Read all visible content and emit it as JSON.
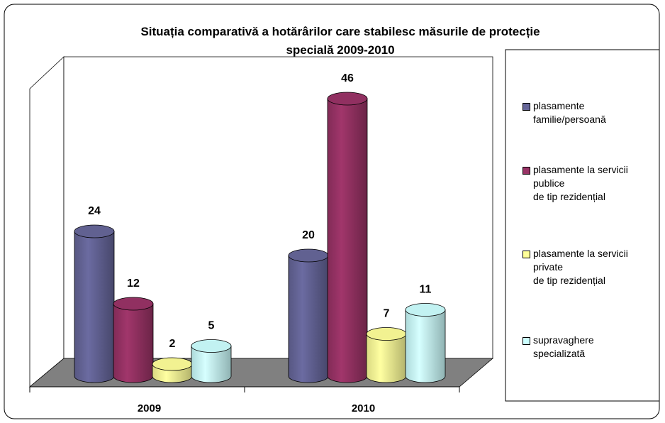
{
  "chart_data": {
    "type": "bar3d",
    "title": "Situația comparativă a hotărârilor care stabilesc măsurile de protecție\nspecială 2009-2010",
    "categories": [
      "2009",
      "2010"
    ],
    "series": [
      {
        "name": "plasamente\nfamilie/persoană",
        "color": "#666699",
        "values": [
          24,
          20
        ]
      },
      {
        "name": "plasamente la servicii\npublice\n de tip rezidențial",
        "color": "#993366",
        "values": [
          12,
          46
        ]
      },
      {
        "name": "plasamente la servicii\n private\nde tip rezidențial",
        "color": "#ffff99",
        "values": [
          2,
          7
        ]
      },
      {
        "name": "supravaghere\nspecializată",
        "color": "#ccffff",
        "values": [
          5,
          11
        ]
      }
    ],
    "legend": "right"
  }
}
